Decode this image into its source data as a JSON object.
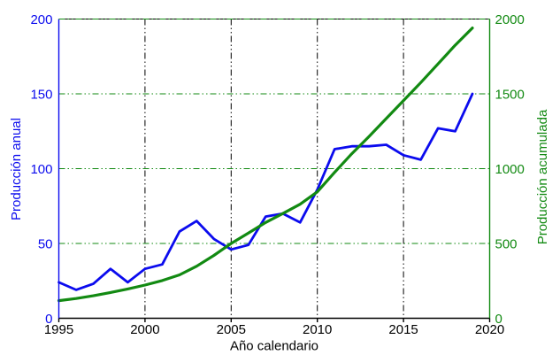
{
  "chart_data": {
    "type": "line",
    "title": "",
    "xlabel": "Año calendario",
    "ylabel_left": "Producción anual",
    "ylabel_right": "Producción acumulada",
    "xlim": [
      1995,
      2020
    ],
    "ylim_left": [
      0,
      200
    ],
    "ylim_right": [
      0,
      2000
    ],
    "xticks": [
      1995,
      2000,
      2005,
      2010,
      2015,
      2020
    ],
    "yticks_left": [
      0,
      50,
      100,
      150,
      200
    ],
    "yticks_right": [
      0,
      500,
      1000,
      1500,
      2000
    ],
    "grid": true,
    "legend": "none",
    "x": [
      1995,
      1996,
      1997,
      1998,
      1999,
      2000,
      2001,
      2002,
      2003,
      2004,
      2005,
      2006,
      2007,
      2008,
      2009,
      2010,
      2011,
      2012,
      2013,
      2014,
      2015,
      2016,
      2017,
      2018,
      2019
    ],
    "series": [
      {
        "name": "Producción anual",
        "axis": "left",
        "color_key": "annual",
        "values": [
          24,
          19,
          23,
          33,
          24,
          33,
          36,
          58,
          65,
          53,
          46,
          49,
          68,
          70,
          64,
          86,
          113,
          115,
          115,
          116,
          109,
          106,
          127,
          125,
          150
        ]
      },
      {
        "name": "Producción acumulada",
        "axis": "right",
        "color_key": "cumulative",
        "values": [
          118,
          132,
          150,
          172,
          196,
          222,
          252,
          290,
          348,
          420,
          500,
          570,
          640,
          700,
          762,
          845,
          975,
          1100,
          1215,
          1335,
          1455,
          1575,
          1700,
          1825,
          1940
        ]
      }
    ],
    "colors": {
      "annual": "#0b0bee",
      "cumulative": "#128a12",
      "left_axis": "#0b0bee",
      "right_axis": "#128a12",
      "x_axis": "#000000",
      "grid_vertical": "#000000",
      "grid_horizontal": "#128a12",
      "background": "#ffffff"
    }
  }
}
